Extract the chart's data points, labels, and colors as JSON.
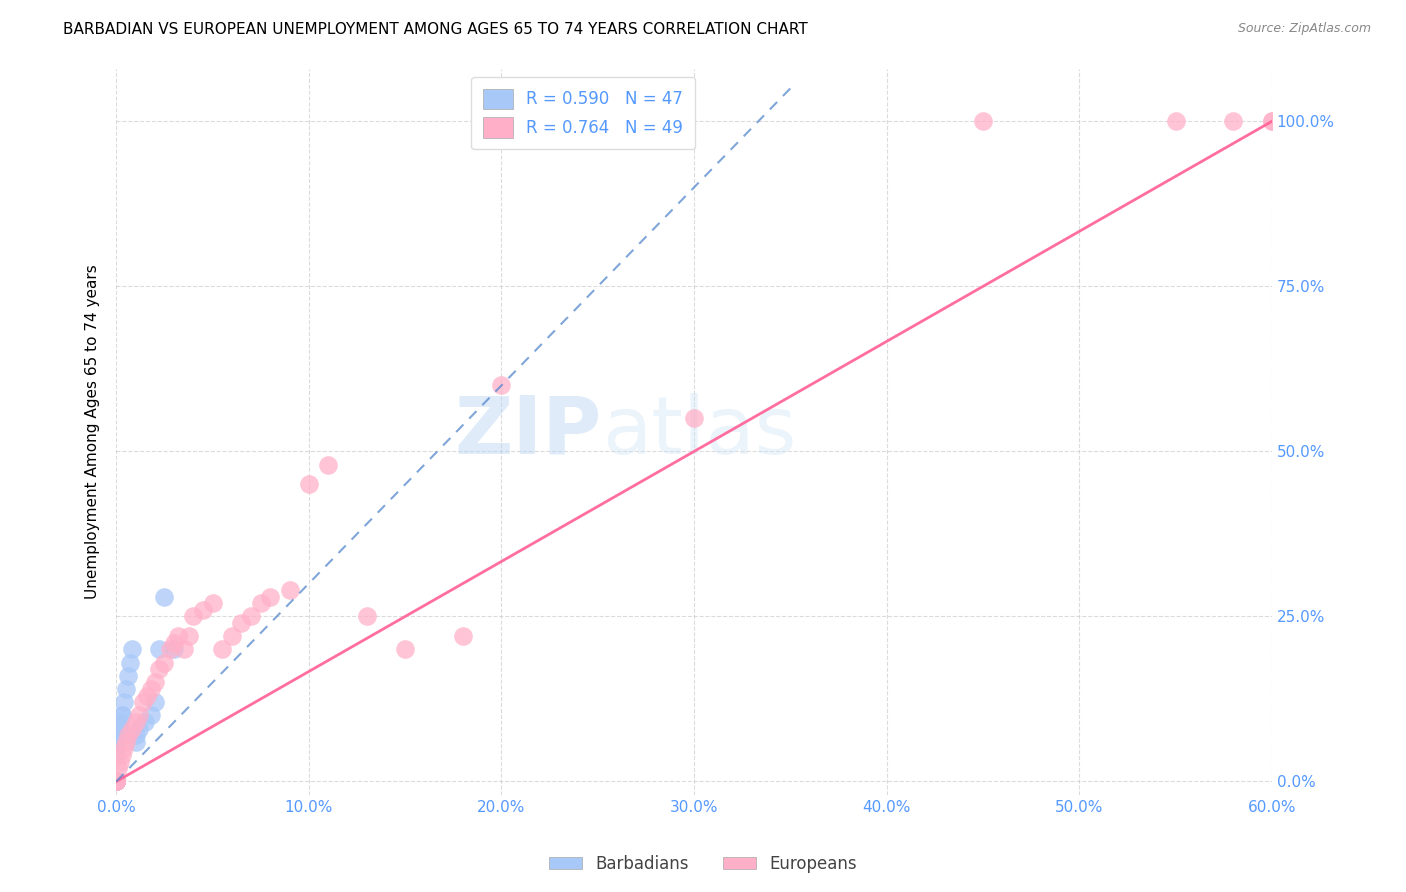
{
  "title": "BARBADIAN VS EUROPEAN UNEMPLOYMENT AMONG AGES 65 TO 74 YEARS CORRELATION CHART",
  "source": "Source: ZipAtlas.com",
  "ylabel": "Unemployment Among Ages 65 to 74 years",
  "watermark_zip": "ZIP",
  "watermark_atlas": "atlas",
  "legend_label1": "R = 0.590   N = 47",
  "legend_label2": "R = 0.764   N = 49",
  "legend_bottom1": "Barbadians",
  "legend_bottom2": "Europeans",
  "barbadian_color": "#a8c8f8",
  "european_color": "#ffb0c8",
  "barbadian_line_color": "#5588cc",
  "european_line_color": "#ff6699",
  "tick_color": "#5599ff",
  "xlim": [
    0.0,
    0.6
  ],
  "ylim": [
    -0.02,
    1.08
  ],
  "x_tick_vals": [
    0.0,
    0.1,
    0.2,
    0.3,
    0.4,
    0.5,
    0.6
  ],
  "x_tick_labels": [
    "0.0%",
    "10.0%",
    "20.0%",
    "30.0%",
    "40.0%",
    "50.0%",
    "60.0%"
  ],
  "y_tick_vals": [
    0.0,
    0.25,
    0.5,
    0.75,
    1.0
  ],
  "y_tick_labels": [
    "0.0%",
    "25.0%",
    "50.0%",
    "75.0%",
    "100.0%"
  ],
  "barbadian_x": [
    0.0,
    0.0,
    0.0,
    0.0,
    0.0,
    0.0,
    0.0,
    0.0,
    0.0,
    0.0,
    0.0,
    0.0,
    0.0,
    0.0,
    0.0,
    0.0,
    0.0,
    0.0,
    0.0,
    0.0,
    0.0,
    0.0,
    0.0,
    0.0,
    0.0,
    0.0,
    0.0,
    0.001,
    0.001,
    0.002,
    0.002,
    0.003,
    0.003,
    0.004,
    0.005,
    0.006,
    0.007,
    0.008,
    0.01,
    0.01,
    0.012,
    0.015,
    0.018,
    0.02,
    0.022,
    0.025,
    0.03
  ],
  "barbadian_y": [
    0.0,
    0.0,
    0.0,
    0.0,
    0.0,
    0.0,
    0.0,
    0.0,
    0.0,
    0.0,
    0.0,
    0.0,
    0.0,
    0.0,
    0.0,
    0.0,
    0.0,
    0.0,
    0.0,
    0.0,
    0.0,
    0.0,
    0.0,
    0.0,
    0.04,
    0.05,
    0.06,
    0.07,
    0.08,
    0.08,
    0.09,
    0.1,
    0.1,
    0.12,
    0.14,
    0.16,
    0.18,
    0.2,
    0.06,
    0.07,
    0.08,
    0.09,
    0.1,
    0.12,
    0.2,
    0.28,
    0.2
  ],
  "european_x": [
    0.0,
    0.0,
    0.0,
    0.0,
    0.0,
    0.0,
    0.0,
    0.001,
    0.002,
    0.003,
    0.004,
    0.005,
    0.006,
    0.008,
    0.01,
    0.012,
    0.014,
    0.016,
    0.018,
    0.02,
    0.022,
    0.025,
    0.028,
    0.03,
    0.032,
    0.035,
    0.038,
    0.04,
    0.045,
    0.05,
    0.055,
    0.06,
    0.065,
    0.07,
    0.075,
    0.08,
    0.09,
    0.1,
    0.11,
    0.13,
    0.15,
    0.18,
    0.2,
    0.3,
    0.45,
    0.55,
    0.58,
    0.6,
    0.6
  ],
  "european_y": [
    0.0,
    0.0,
    0.0,
    0.0,
    0.0,
    0.0,
    0.0,
    0.02,
    0.03,
    0.04,
    0.05,
    0.06,
    0.07,
    0.08,
    0.09,
    0.1,
    0.12,
    0.13,
    0.14,
    0.15,
    0.17,
    0.18,
    0.2,
    0.21,
    0.22,
    0.2,
    0.22,
    0.25,
    0.26,
    0.27,
    0.2,
    0.22,
    0.24,
    0.25,
    0.27,
    0.28,
    0.29,
    0.45,
    0.48,
    0.25,
    0.2,
    0.22,
    0.6,
    0.55,
    1.0,
    1.0,
    1.0,
    1.0,
    1.0
  ],
  "euro_line_x0": 0.0,
  "euro_line_x1": 0.6,
  "euro_line_y0": 0.0,
  "euro_line_y1": 1.0,
  "barb_line_x0": 0.0,
  "barb_line_x1": 0.35,
  "barb_line_y0": 0.0,
  "barb_line_y1": 1.05
}
